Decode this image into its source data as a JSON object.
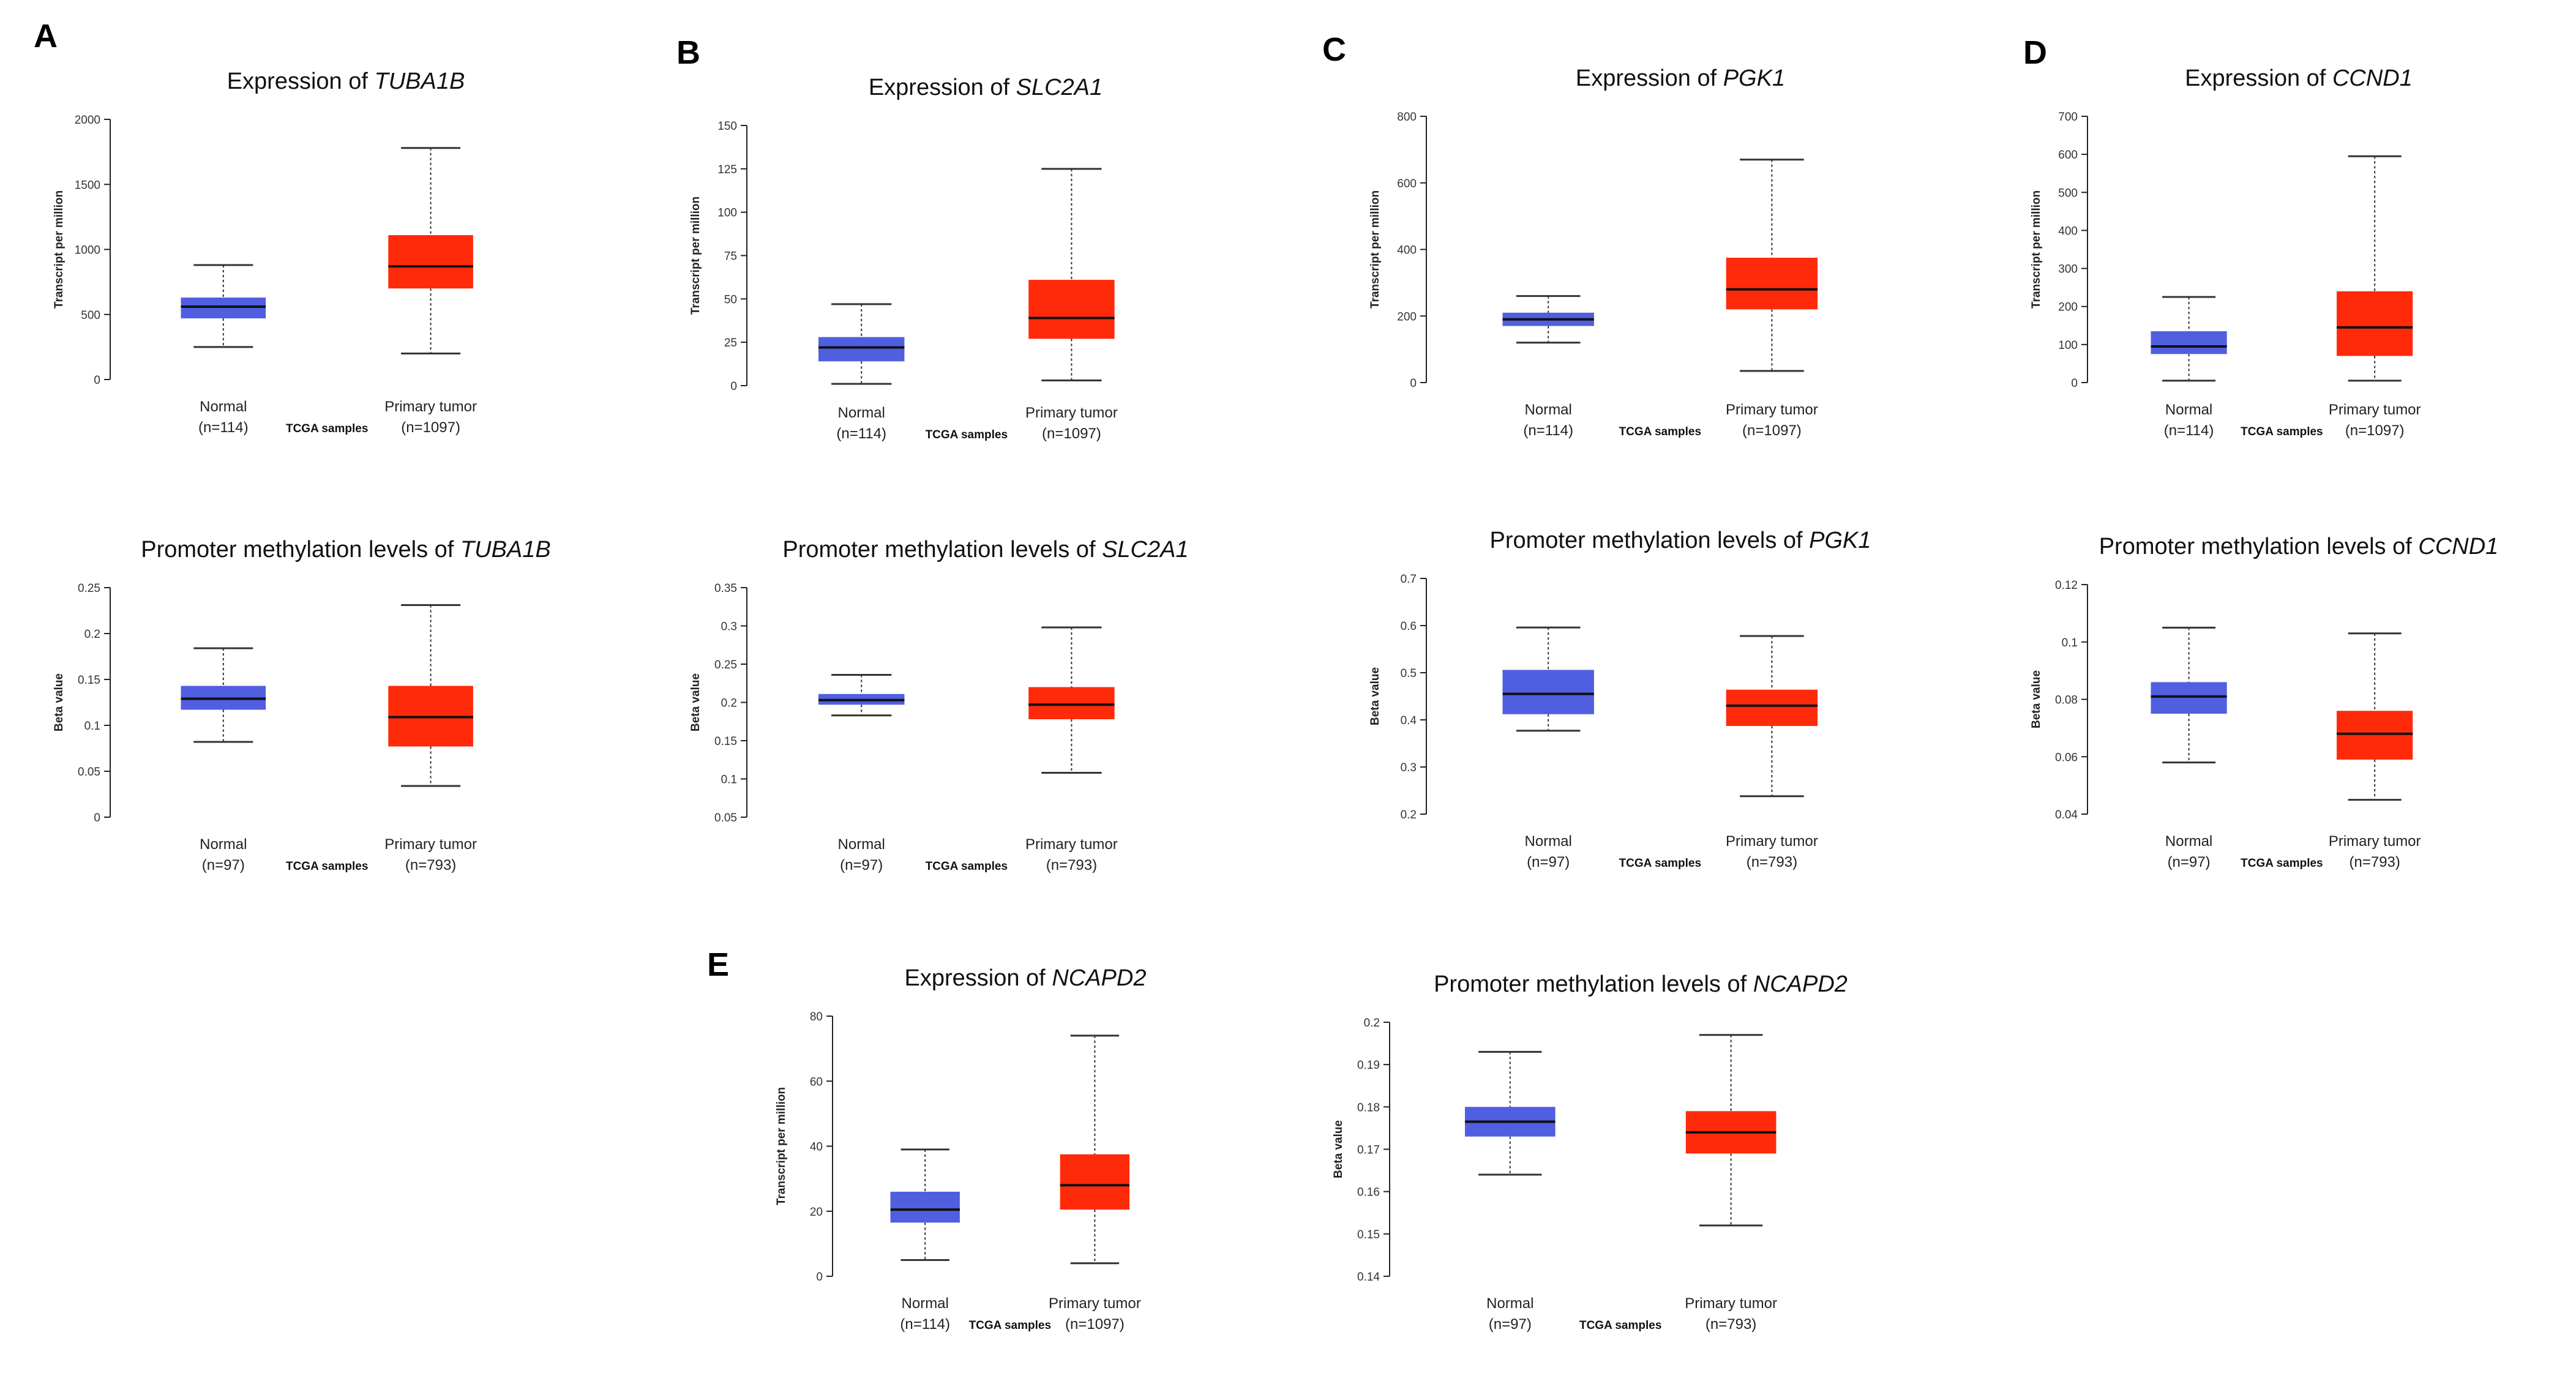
{
  "panel_labels": [
    "A",
    "B",
    "C",
    "D",
    "E"
  ],
  "colors": {
    "normal": "#4f5fe0",
    "tumor": "#ff2a0a",
    "whisker": "#333333",
    "axis": "#222222",
    "median": "#111111"
  },
  "chart_data": [
    {
      "id": "A-expr",
      "type": "boxplot",
      "title_prefix": "Expression of ",
      "gene": "TUBA1B",
      "ylabel": "Transcript per million",
      "ylim": [
        0,
        2000
      ],
      "yticks": [
        0,
        500,
        1000,
        1500,
        2000
      ],
      "xlabel": "TCGA samples",
      "groups": [
        {
          "name": "Normal",
          "n": "(n=114)",
          "min": 250,
          "q1": 470,
          "median": 560,
          "q3": 630,
          "max": 880
        },
        {
          "name": "Primary tumor",
          "n": "(n=1097)",
          "min": 200,
          "q1": 700,
          "median": 870,
          "q3": 1110,
          "max": 1780
        }
      ]
    },
    {
      "id": "A-meth",
      "type": "boxplot",
      "title_prefix": "Promoter methylation levels of ",
      "gene": "TUBA1B",
      "ylabel": "Beta value",
      "ylim": [
        0,
        0.25
      ],
      "yticks": [
        0,
        0.05,
        0.1,
        0.15,
        0.2,
        0.25
      ],
      "xlabel": "TCGA samples",
      "groups": [
        {
          "name": "Normal",
          "n": "(n=97)",
          "min": 0.082,
          "q1": 0.117,
          "median": 0.129,
          "q3": 0.143,
          "max": 0.184
        },
        {
          "name": "Primary tumor",
          "n": "(n=793)",
          "min": 0.034,
          "q1": 0.077,
          "median": 0.109,
          "q3": 0.143,
          "max": 0.231
        }
      ]
    },
    {
      "id": "B-expr",
      "type": "boxplot",
      "title_prefix": "Expression of ",
      "gene": "SLC2A1",
      "ylabel": "Transcript per million",
      "ylim": [
        0,
        150
      ],
      "yticks": [
        0,
        25,
        50,
        75,
        100,
        125,
        150
      ],
      "xlabel": "TCGA samples",
      "groups": [
        {
          "name": "Normal",
          "n": "(n=114)",
          "min": 1,
          "q1": 14,
          "median": 22,
          "q3": 28,
          "max": 47
        },
        {
          "name": "Primary tumor",
          "n": "(n=1097)",
          "min": 3,
          "q1": 27,
          "median": 39,
          "q3": 61,
          "max": 125
        }
      ]
    },
    {
      "id": "B-meth",
      "type": "boxplot",
      "title_prefix": "Promoter methylation levels of ",
      "gene": "SLC2A1",
      "ylabel": "Beta value",
      "ylim": [
        0.05,
        0.35
      ],
      "yticks": [
        0.05,
        0.1,
        0.15,
        0.2,
        0.25,
        0.3,
        0.35
      ],
      "xlabel": "TCGA samples",
      "groups": [
        {
          "name": "Normal",
          "n": "(n=97)",
          "min": 0.183,
          "q1": 0.197,
          "median": 0.203,
          "q3": 0.211,
          "max": 0.236
        },
        {
          "name": "Primary tumor",
          "n": "(n=793)",
          "min": 0.108,
          "q1": 0.178,
          "median": 0.197,
          "q3": 0.22,
          "max": 0.298
        }
      ]
    },
    {
      "id": "C-expr",
      "type": "boxplot",
      "title_prefix": "Expression of ",
      "gene": "PGK1",
      "ylabel": "Transcript per million",
      "ylim": [
        0,
        800
      ],
      "yticks": [
        0,
        200,
        400,
        600,
        800
      ],
      "xlabel": "TCGA samples",
      "groups": [
        {
          "name": "Normal",
          "n": "(n=114)",
          "min": 120,
          "q1": 170,
          "median": 190,
          "q3": 210,
          "max": 260
        },
        {
          "name": "Primary tumor",
          "n": "(n=1097)",
          "min": 35,
          "q1": 220,
          "median": 280,
          "q3": 375,
          "max": 670
        }
      ]
    },
    {
      "id": "C-meth",
      "type": "boxplot",
      "title_prefix": "Promoter methylation levels of ",
      "gene": "PGK1",
      "ylabel": "Beta value",
      "ylim": [
        0.2,
        0.7
      ],
      "yticks": [
        0.2,
        0.3,
        0.4,
        0.5,
        0.6,
        0.7
      ],
      "xlabel": "TCGA samples",
      "groups": [
        {
          "name": "Normal",
          "n": "(n=97)",
          "min": 0.377,
          "q1": 0.412,
          "median": 0.455,
          "q3": 0.506,
          "max": 0.596
        },
        {
          "name": "Primary tumor",
          "n": "(n=793)",
          "min": 0.238,
          "q1": 0.387,
          "median": 0.43,
          "q3": 0.464,
          "max": 0.578
        }
      ]
    },
    {
      "id": "D-expr",
      "type": "boxplot",
      "title_prefix": "Expression of ",
      "gene": "CCND1",
      "ylabel": "Transcript per million",
      "ylim": [
        0,
        700
      ],
      "yticks": [
        0,
        100,
        200,
        300,
        400,
        500,
        600,
        700
      ],
      "xlabel": "TCGA samples",
      "groups": [
        {
          "name": "Normal",
          "n": "(n=114)",
          "min": 5,
          "q1": 75,
          "median": 95,
          "q3": 135,
          "max": 225
        },
        {
          "name": "Primary tumor",
          "n": "(n=1097)",
          "min": 5,
          "q1": 70,
          "median": 145,
          "q3": 240,
          "max": 595
        }
      ]
    },
    {
      "id": "D-meth",
      "type": "boxplot",
      "title_prefix": "Promoter methylation levels of ",
      "gene": "CCND1",
      "ylabel": "Beta value",
      "ylim": [
        0.04,
        0.12
      ],
      "yticks": [
        0.04,
        0.06,
        0.08,
        0.1,
        0.12
      ],
      "xlabel": "TCGA samples",
      "groups": [
        {
          "name": "Normal",
          "n": "(n=97)",
          "min": 0.058,
          "q1": 0.075,
          "median": 0.081,
          "q3": 0.086,
          "max": 0.105
        },
        {
          "name": "Primary tumor",
          "n": "(n=793)",
          "min": 0.045,
          "q1": 0.059,
          "median": 0.068,
          "q3": 0.076,
          "max": 0.103
        }
      ]
    },
    {
      "id": "E-expr",
      "type": "boxplot",
      "title_prefix": "Expression of ",
      "gene": "NCAPD2",
      "ylabel": "Transcript per million",
      "ylim": [
        0,
        80
      ],
      "yticks": [
        0,
        20,
        40,
        60,
        80
      ],
      "xlabel": "TCGA samples",
      "groups": [
        {
          "name": "Normal",
          "n": "(n=114)",
          "min": 5,
          "q1": 16.5,
          "median": 20.5,
          "q3": 26,
          "max": 39
        },
        {
          "name": "Primary tumor",
          "n": "(n=1097)",
          "min": 4,
          "q1": 20.5,
          "median": 28,
          "q3": 37.5,
          "max": 74
        }
      ]
    },
    {
      "id": "E-meth",
      "type": "boxplot",
      "title_prefix": "Promoter methylation levels of ",
      "gene": "NCAPD2",
      "ylabel": "Beta value",
      "ylim": [
        0.14,
        0.2
      ],
      "yticks": [
        0.14,
        0.15,
        0.16,
        0.17,
        0.18,
        0.19,
        0.2
      ],
      "xlabel": "TCGA samples",
      "groups": [
        {
          "name": "Normal",
          "n": "(n=97)",
          "min": 0.164,
          "q1": 0.173,
          "median": 0.1765,
          "q3": 0.18,
          "max": 0.193
        },
        {
          "name": "Primary tumor",
          "n": "(n=793)",
          "min": 0.152,
          "q1": 0.169,
          "median": 0.174,
          "q3": 0.179,
          "max": 0.197
        }
      ]
    }
  ]
}
